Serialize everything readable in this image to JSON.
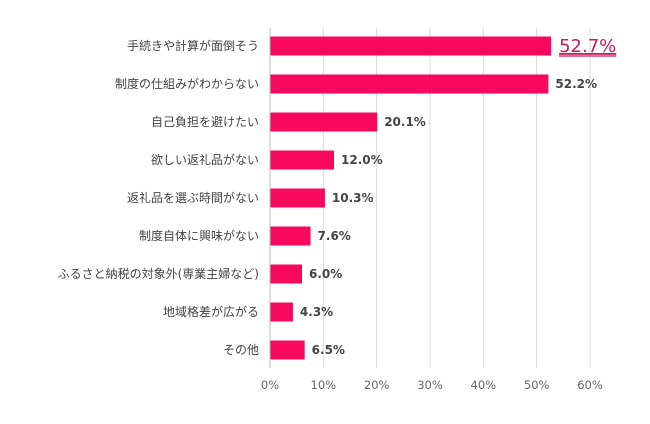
{
  "chart_data": {
    "type": "bar",
    "orientation": "horizontal",
    "categories": [
      "手続きや計算が面倒そう",
      "制度の仕組みがわからない",
      "自己負担を避けたい",
      "欲しい返礼品がない",
      "返礼品を選ぶ時間がない",
      "制度自体に興味がない",
      "ふるさと納税の対象外(専業主婦など)",
      "地域格差が広がる",
      "その他"
    ],
    "values": [
      52.7,
      52.2,
      20.1,
      12.0,
      10.3,
      7.6,
      6.0,
      4.3,
      6.5
    ],
    "value_labels": [
      "52.7%",
      "52.2%",
      "20.1%",
      "12.0%",
      "10.3%",
      "7.6%",
      "6.0%",
      "4.3%",
      "6.5%"
    ],
    "highlighted_index": 0,
    "xlim": [
      0,
      60
    ],
    "x_ticks": [
      "0%",
      "10%",
      "20%",
      "30%",
      "40%",
      "50%",
      "60%"
    ],
    "grid": true,
    "colors": {
      "bar": "#f70a5e",
      "highlight_label": "#c8195f",
      "grid": "#d9d9d9"
    }
  }
}
